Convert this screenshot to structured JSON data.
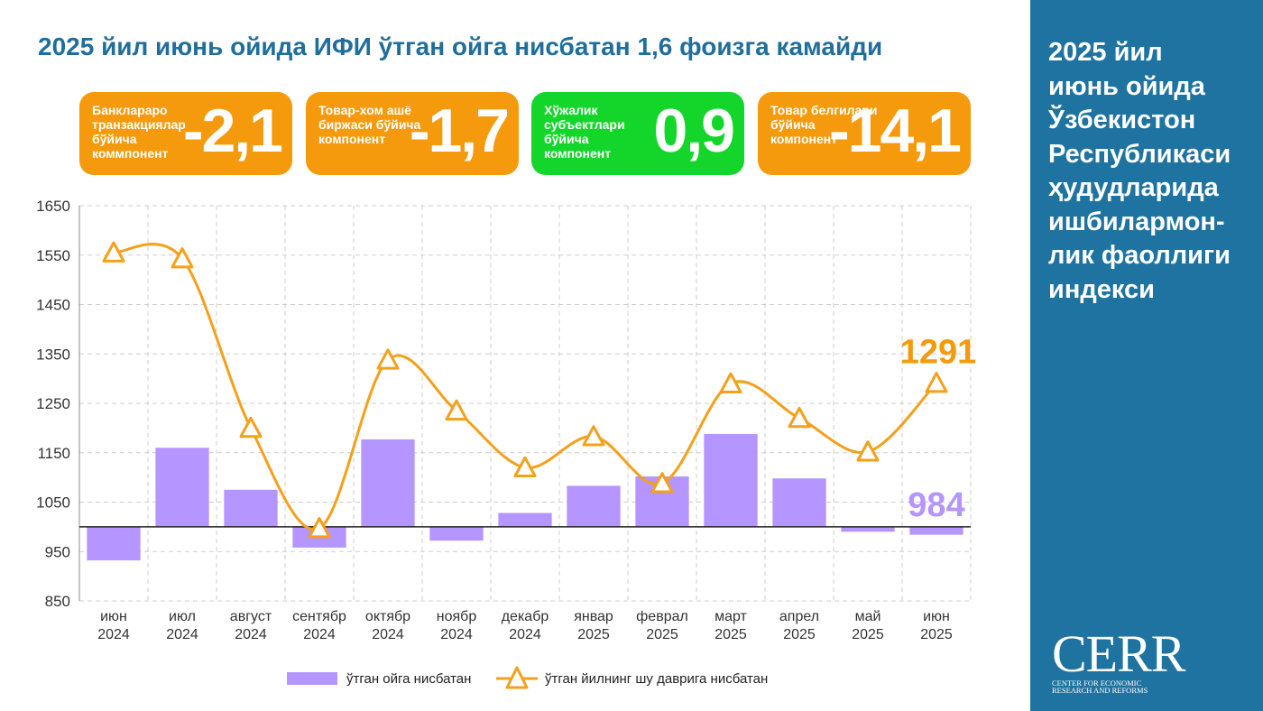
{
  "header": {
    "title": "2025 йил июнь ойида ИФИ ўтган ойга нисбатан 1,6 фоизга камайди"
  },
  "cards": [
    {
      "label": "Банклараро транзакциялар бўйича коммпонент",
      "value": "-2,1",
      "color": "#f59a0c"
    },
    {
      "label": "Товар-хом ашё биржаси бўйича компонент",
      "value": "-1,7",
      "color": "#f59a0c"
    },
    {
      "label": "Хўжалик субъектлари бўйича компонент",
      "value": "0,9",
      "color": "#14d62a"
    },
    {
      "label": "Товар белгилари бўйича компонент",
      "value": "-14,1",
      "color": "#f59a0c"
    }
  ],
  "sidebar": {
    "title_lines": [
      "2025 йил",
      "июнь ойида",
      "Ўзбекистон",
      "Республикаси",
      "ҳудудларида",
      "ишбилармон-",
      "лик фаоллиги",
      "индекси"
    ],
    "logo": {
      "name": "CERR",
      "line1": "CENTER FOR ECONOMIC",
      "line2": "RESEARCH AND REFORMS"
    }
  },
  "chart_data": {
    "type": "bar+line",
    "categories": [
      [
        "июн",
        "2024"
      ],
      [
        "июл",
        "2024"
      ],
      [
        "август",
        "2024"
      ],
      [
        "сентябр",
        "2024"
      ],
      [
        "октябр",
        "2024"
      ],
      [
        "ноябр",
        "2024"
      ],
      [
        "декабр",
        "2024"
      ],
      [
        "январ",
        "2025"
      ],
      [
        "феврал",
        "2025"
      ],
      [
        "март",
        "2025"
      ],
      [
        "апрел",
        "2025"
      ],
      [
        "май",
        "2025"
      ],
      [
        "июн",
        "2025"
      ]
    ],
    "ylim": [
      850,
      1650
    ],
    "yticks": [
      850,
      950,
      1050,
      1150,
      1250,
      1350,
      1450,
      1550,
      1650
    ],
    "baseline": 1000,
    "series": [
      {
        "name": "ўтган ойга нисбатан",
        "type": "bar",
        "color": "#b595ff",
        "values": [
          932,
          1160,
          1075,
          958,
          1177,
          972,
          1028,
          1083,
          1102,
          1188,
          1098,
          990,
          984
        ]
      },
      {
        "name": "ўтган йилнинг шу даврига нисбатан",
        "type": "line",
        "color": "#f5a01a",
        "values": [
          1555,
          1543,
          1200,
          997,
          1338,
          1235,
          1120,
          1183,
          1088,
          1290,
          1220,
          1152,
          1291
        ]
      }
    ],
    "annotations": [
      {
        "series": 0,
        "index": 12,
        "text": "984",
        "color": "#b595ff"
      },
      {
        "series": 1,
        "index": 12,
        "text": "1291",
        "color": "#f59a0c"
      }
    ],
    "grid": true
  }
}
